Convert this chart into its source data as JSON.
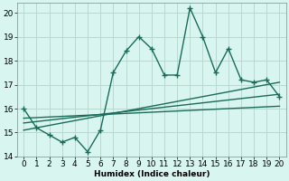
{
  "main_x": [
    0,
    1,
    2,
    3,
    4,
    5,
    6,
    7,
    8,
    9,
    10,
    11,
    12,
    13,
    14,
    15,
    16,
    17,
    18,
    19,
    20
  ],
  "main_y": [
    16.0,
    15.2,
    14.9,
    14.6,
    14.8,
    14.2,
    15.1,
    17.5,
    18.4,
    19.0,
    18.5,
    17.4,
    17.4,
    20.2,
    19.0,
    17.5,
    18.5,
    17.2,
    17.1,
    17.2,
    16.5
  ],
  "line1_x": [
    0,
    20
  ],
  "line1_y": [
    15.1,
    17.1
  ],
  "line2_x": [
    0,
    20
  ],
  "line2_y": [
    15.4,
    16.6
  ],
  "line3_x": [
    0,
    20
  ],
  "line3_y": [
    15.6,
    16.1
  ],
  "line_color": "#1a6b5a",
  "bg_color": "#d8f5f0",
  "grid_color": "#b8d8d0",
  "xlabel": "Humidex (Indice chaleur)",
  "xlim": [
    -0.5,
    20.5
  ],
  "ylim": [
    14,
    20.4
  ],
  "yticks": [
    14,
    15,
    16,
    17,
    18,
    19,
    20
  ],
  "xticks": [
    0,
    1,
    2,
    3,
    4,
    5,
    6,
    7,
    8,
    9,
    10,
    11,
    12,
    13,
    14,
    15,
    16,
    17,
    18,
    19,
    20
  ],
  "marker": "+",
  "markersize": 4,
  "linewidth": 1.0,
  "font_size": 6.5
}
